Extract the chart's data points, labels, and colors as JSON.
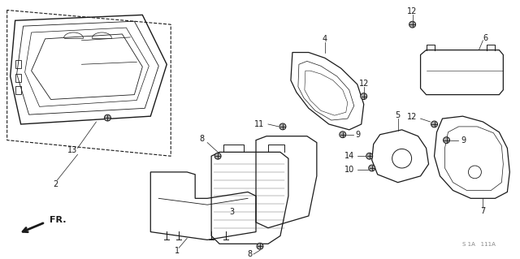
{
  "bg_color": "#ffffff",
  "line_color": "#1a1a1a",
  "fig_width": 6.4,
  "fig_height": 3.19,
  "watermark": "S 1A   111A"
}
